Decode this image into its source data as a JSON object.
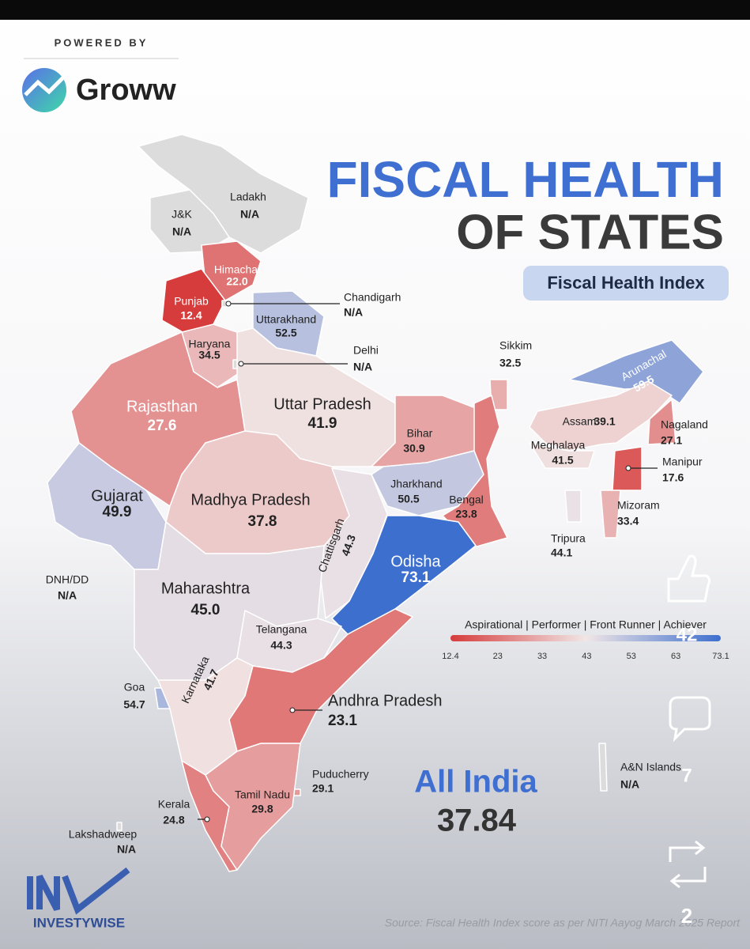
{
  "powered_by": "POWERED BY",
  "brand": "Groww",
  "title_line1": "FISCAL HEALTH",
  "title_line2": "OF STATES",
  "subtitle": "Fiscal Health Index",
  "legend": {
    "label": "Aspirational | Performer | Front Runner | Achiever",
    "ticks": [
      12.4,
      23,
      33,
      43,
      53,
      63,
      73.1
    ],
    "colors": [
      "#d63c3c",
      "#f1e6e6",
      "#3d6fcf"
    ]
  },
  "states": [
    {
      "name": "Ladakh",
      "value": null,
      "value_label": "N/A"
    },
    {
      "name": "J&K",
      "value": null,
      "value_label": "N/A"
    },
    {
      "name": "Himachal",
      "value": 22,
      "value_label": "22.0"
    },
    {
      "name": "Punjab",
      "value": 12.4
    },
    {
      "name": "Chandigarh",
      "value": null,
      "value_label": "N/A"
    },
    {
      "name": "Uttarakhand",
      "value": 52.5
    },
    {
      "name": "Haryana",
      "value": 34.5
    },
    {
      "name": "Delhi",
      "value": null,
      "value_label": "N/A"
    },
    {
      "name": "Sikkim",
      "value": 32.5
    },
    {
      "name": "Arunachal",
      "value": 59.5
    },
    {
      "name": "Rajasthan",
      "value": 27.6
    },
    {
      "name": "Uttar Pradesh",
      "value": 41.9
    },
    {
      "name": "Bihar",
      "value": 30.9
    },
    {
      "name": "Assam",
      "value": 39.1
    },
    {
      "name": "Nagaland",
      "value": 27.1
    },
    {
      "name": "Meghalaya",
      "value": 41.5
    },
    {
      "name": "Manipur",
      "value": 17.6
    },
    {
      "name": "Gujarat",
      "value": 49.9
    },
    {
      "name": "Madhya Pradesh",
      "value": 37.8
    },
    {
      "name": "Jharkhand",
      "value": 50.5
    },
    {
      "name": "Bengal",
      "value": 23.8
    },
    {
      "name": "Chattisgarh",
      "value": 44.3
    },
    {
      "name": "Mizoram",
      "value": 33.4
    },
    {
      "name": "Tripura",
      "value": 44.1
    },
    {
      "name": "Odisha",
      "value": 73.1
    },
    {
      "name": "DNH/DD",
      "value": null,
      "value_label": "N/A"
    },
    {
      "name": "Maharashtra",
      "value": 45,
      "value_label": "45.0"
    },
    {
      "name": "Telangana",
      "value": 44.3
    },
    {
      "name": "Goa",
      "value": 54.7
    },
    {
      "name": "Karnataka",
      "value": 41.7
    },
    {
      "name": "Andhra Pradesh",
      "value": 23.1
    },
    {
      "name": "Puducherry",
      "value": 29.1
    },
    {
      "name": "Kerala",
      "value": 24.8
    },
    {
      "name": "Tamil Nadu",
      "value": 29.8
    },
    {
      "name": "A&N Islands",
      "value": null,
      "value_label": "N/A"
    },
    {
      "name": "Lakshadweep",
      "value": null,
      "value_label": "N/A"
    }
  ],
  "all_india": {
    "label": "All India",
    "value": 37.84
  },
  "footer_brand": "INVESTYWISE",
  "source": "Source: Fiscal Health Index score as per NITI Aayog March 2025 Report",
  "social": {
    "likes": 42,
    "comments": 7,
    "reposts": 2
  }
}
